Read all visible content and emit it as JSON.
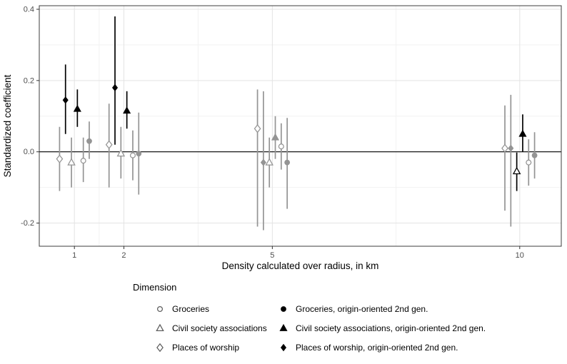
{
  "chart_data": {
    "type": "scatter",
    "title": "",
    "xlabel": "Density calculated over radius, in km",
    "ylabel": "Standardized coefficient",
    "x_tick_values": [
      1,
      2,
      5,
      10
    ],
    "x_tick_labels": [
      "1",
      "2",
      "5",
      "10"
    ],
    "y_tick_values": [
      -0.2,
      0.0,
      0.2,
      0.4
    ],
    "y_tick_labels": [
      "-0.2",
      "0.0",
      "0.2",
      "0.4"
    ],
    "x_minor": [
      1.5,
      3.5,
      7.5
    ],
    "y_minor": [
      -0.1,
      0.1,
      0.3
    ],
    "xlim": [
      0.29,
      10.84
    ],
    "ylim": [
      -0.265,
      0.41
    ],
    "hline": 0.0,
    "grid": true,
    "legend_position": "bottom",
    "colors": {
      "significant": "#000000",
      "nonsignificant": "#949494",
      "grid_major": "#e3e3e3",
      "grid_minor": "#f2f2f2",
      "panel_border": "#3d3d3d",
      "tick_mark": "#333333",
      "tick_label": "#4d4d4d",
      "axis_title": "#000000",
      "zero_line": "#000000"
    },
    "dodge_offsets": [
      -0.3,
      -0.18,
      -0.06,
      0.06,
      0.18,
      0.3
    ],
    "series": [
      {
        "name": "Places of worship",
        "marker": "diamond",
        "fill": "open",
        "points": [
          {
            "x": 1,
            "est": -0.02,
            "lo": -0.11,
            "hi": 0.07,
            "sig": false
          },
          {
            "x": 2,
            "est": 0.02,
            "lo": -0.1,
            "hi": 0.135,
            "sig": false
          },
          {
            "x": 5,
            "est": 0.065,
            "lo": -0.21,
            "hi": 0.175,
            "sig": false
          },
          {
            "x": 10,
            "est": 0.01,
            "lo": -0.165,
            "hi": 0.13,
            "sig": false
          }
        ]
      },
      {
        "name": "Places of worship, origin-oriented 2nd gen.",
        "marker": "diamond",
        "fill": "solid",
        "points": [
          {
            "x": 1,
            "est": 0.145,
            "lo": 0.05,
            "hi": 0.245,
            "sig": true
          },
          {
            "x": 2,
            "est": 0.18,
            "lo": 0.02,
            "hi": 0.38,
            "sig": true
          },
          {
            "x": 5,
            "est": -0.03,
            "lo": -0.22,
            "hi": 0.17,
            "sig": false
          },
          {
            "x": 10,
            "est": 0.01,
            "lo": -0.21,
            "hi": 0.16,
            "sig": false
          }
        ]
      },
      {
        "name": "Civil society associations",
        "marker": "triangle",
        "fill": "open",
        "points": [
          {
            "x": 1,
            "est": -0.03,
            "lo": -0.1,
            "hi": 0.04,
            "sig": false
          },
          {
            "x": 2,
            "est": -0.005,
            "lo": -0.075,
            "hi": 0.07,
            "sig": false
          },
          {
            "x": 5,
            "est": -0.03,
            "lo": -0.1,
            "hi": 0.04,
            "sig": false
          },
          {
            "x": 10,
            "est": -0.055,
            "lo": -0.11,
            "hi": -0.002,
            "sig": true
          }
        ]
      },
      {
        "name": "Civil society associations, origin-oriented 2nd gen.",
        "marker": "triangle",
        "fill": "solid",
        "points": [
          {
            "x": 1,
            "est": 0.12,
            "lo": 0.07,
            "hi": 0.175,
            "sig": true
          },
          {
            "x": 2,
            "est": 0.115,
            "lo": 0.065,
            "hi": 0.17,
            "sig": true
          },
          {
            "x": 5,
            "est": 0.04,
            "lo": -0.02,
            "hi": 0.1,
            "sig": false
          },
          {
            "x": 10,
            "est": 0.05,
            "lo": 0.0,
            "hi": 0.105,
            "sig": true
          }
        ]
      },
      {
        "name": "Groceries",
        "marker": "circle",
        "fill": "open",
        "points": [
          {
            "x": 1,
            "est": -0.025,
            "lo": -0.085,
            "hi": 0.04,
            "sig": false
          },
          {
            "x": 2,
            "est": -0.01,
            "lo": -0.08,
            "hi": 0.06,
            "sig": false
          },
          {
            "x": 5,
            "est": 0.015,
            "lo": -0.05,
            "hi": 0.08,
            "sig": false
          },
          {
            "x": 10,
            "est": -0.03,
            "lo": -0.095,
            "hi": 0.035,
            "sig": false
          }
        ]
      },
      {
        "name": "Groceries, origin-oriented 2nd gen.",
        "marker": "circle",
        "fill": "solid",
        "points": [
          {
            "x": 1,
            "est": 0.03,
            "lo": -0.02,
            "hi": 0.085,
            "sig": false
          },
          {
            "x": 2,
            "est": -0.005,
            "lo": -0.12,
            "hi": 0.11,
            "sig": false
          },
          {
            "x": 5,
            "est": -0.03,
            "lo": -0.16,
            "hi": 0.095,
            "sig": false
          },
          {
            "x": 10,
            "est": -0.01,
            "lo": -0.075,
            "hi": 0.055,
            "sig": false
          }
        ]
      }
    ]
  },
  "legend": {
    "title": "Dimension",
    "marker_colors": {
      "open": "#5e5e5e",
      "solid": "#000000"
    },
    "columns": [
      [
        {
          "label": "Groceries",
          "marker": "circle",
          "fill": "open"
        },
        {
          "label": "Civil society associations",
          "marker": "triangle",
          "fill": "open"
        },
        {
          "label": "Places of worship",
          "marker": "diamond",
          "fill": "open"
        }
      ],
      [
        {
          "label": "Groceries, origin-oriented 2nd gen.",
          "marker": "circle",
          "fill": "solid"
        },
        {
          "label": "Civil society associations, origin-oriented 2nd gen.",
          "marker": "triangle",
          "fill": "solid"
        },
        {
          "label": "Places of worship, origin-oriented 2nd gen.",
          "marker": "diamond",
          "fill": "solid"
        }
      ]
    ]
  }
}
